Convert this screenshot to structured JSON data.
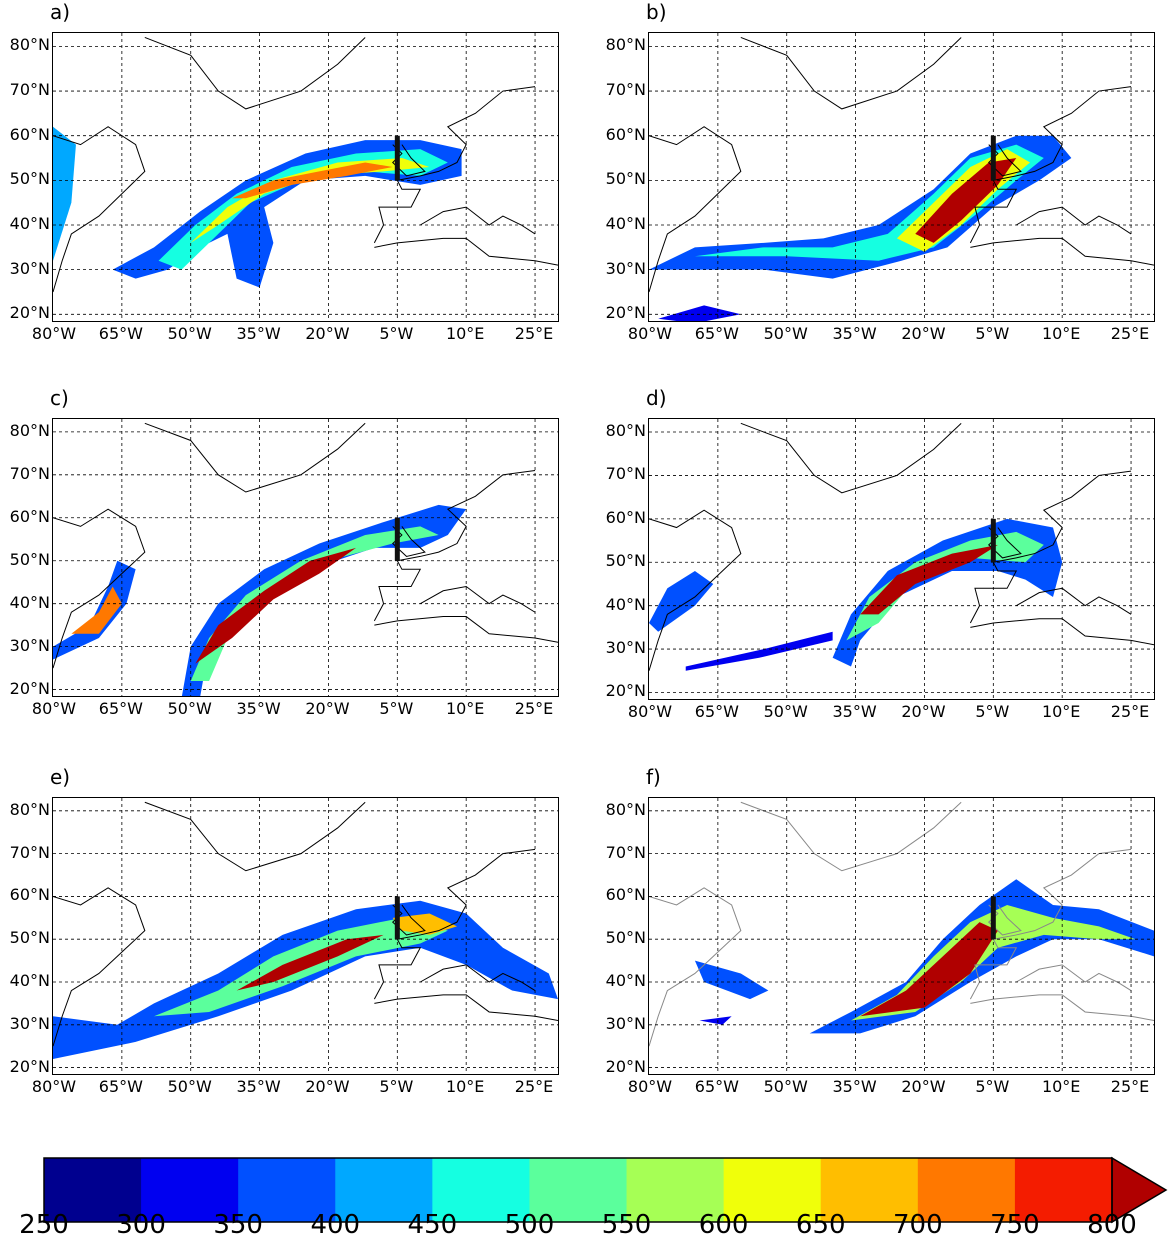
{
  "map_data": {
    "lat_ticks": [
      "20°N",
      "30°N",
      "40°N",
      "50°N",
      "60°N",
      "70°N",
      "80°N"
    ],
    "lon_ticks": [
      "80°W",
      "65°W",
      "50°W",
      "35°W",
      "20°W",
      "5°W",
      "10°E",
      "25°E"
    ],
    "lat_values": [
      20,
      30,
      40,
      50,
      60,
      70,
      80
    ],
    "lon_values": [
      -80,
      -65,
      -50,
      -35,
      -20,
      -5,
      10,
      25
    ],
    "lon_range": [
      -80,
      30
    ],
    "lat_range": [
      18.5,
      83
    ],
    "grid": "dashed",
    "section_line": {
      "lon": -5,
      "lat": [
        50,
        60
      ]
    },
    "panels": [
      {
        "label": "a)"
      },
      {
        "label": "b)"
      },
      {
        "label": "c)"
      },
      {
        "label": "d)"
      },
      {
        "label": "e)"
      },
      {
        "label": "f)"
      }
    ]
  },
  "colorbar": {
    "ticks": [
      "250",
      "300",
      "350",
      "400",
      "450",
      "500",
      "550",
      "600",
      "650",
      "700",
      "750",
      "800"
    ],
    "colors": [
      "#00008f",
      "#0000f0",
      "#0050ff",
      "#00a8ff",
      "#15ffe1",
      "#5bff9c",
      "#a6ff55",
      "#f0ff0a",
      "#ffbe00",
      "#ff7800",
      "#f41c00",
      "#b00000"
    ],
    "extend": "max"
  }
}
